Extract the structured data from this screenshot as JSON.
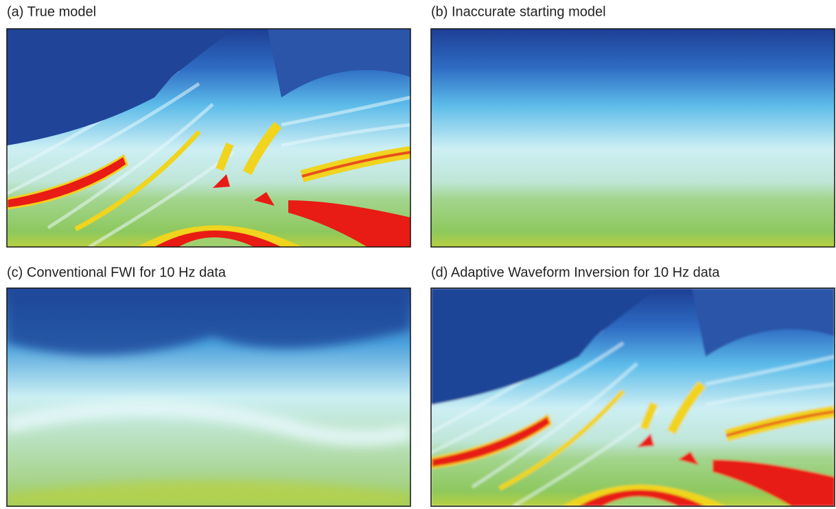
{
  "figure": {
    "panels": [
      {
        "label": "(a)  True model"
      },
      {
        "label": "(b)  Inaccurate starting model"
      },
      {
        "label": "(c) Conventional FWI for 10 Hz data"
      },
      {
        "label": "(d) Adaptive Waveform Inversion  for 10 Hz data"
      }
    ]
  }
}
